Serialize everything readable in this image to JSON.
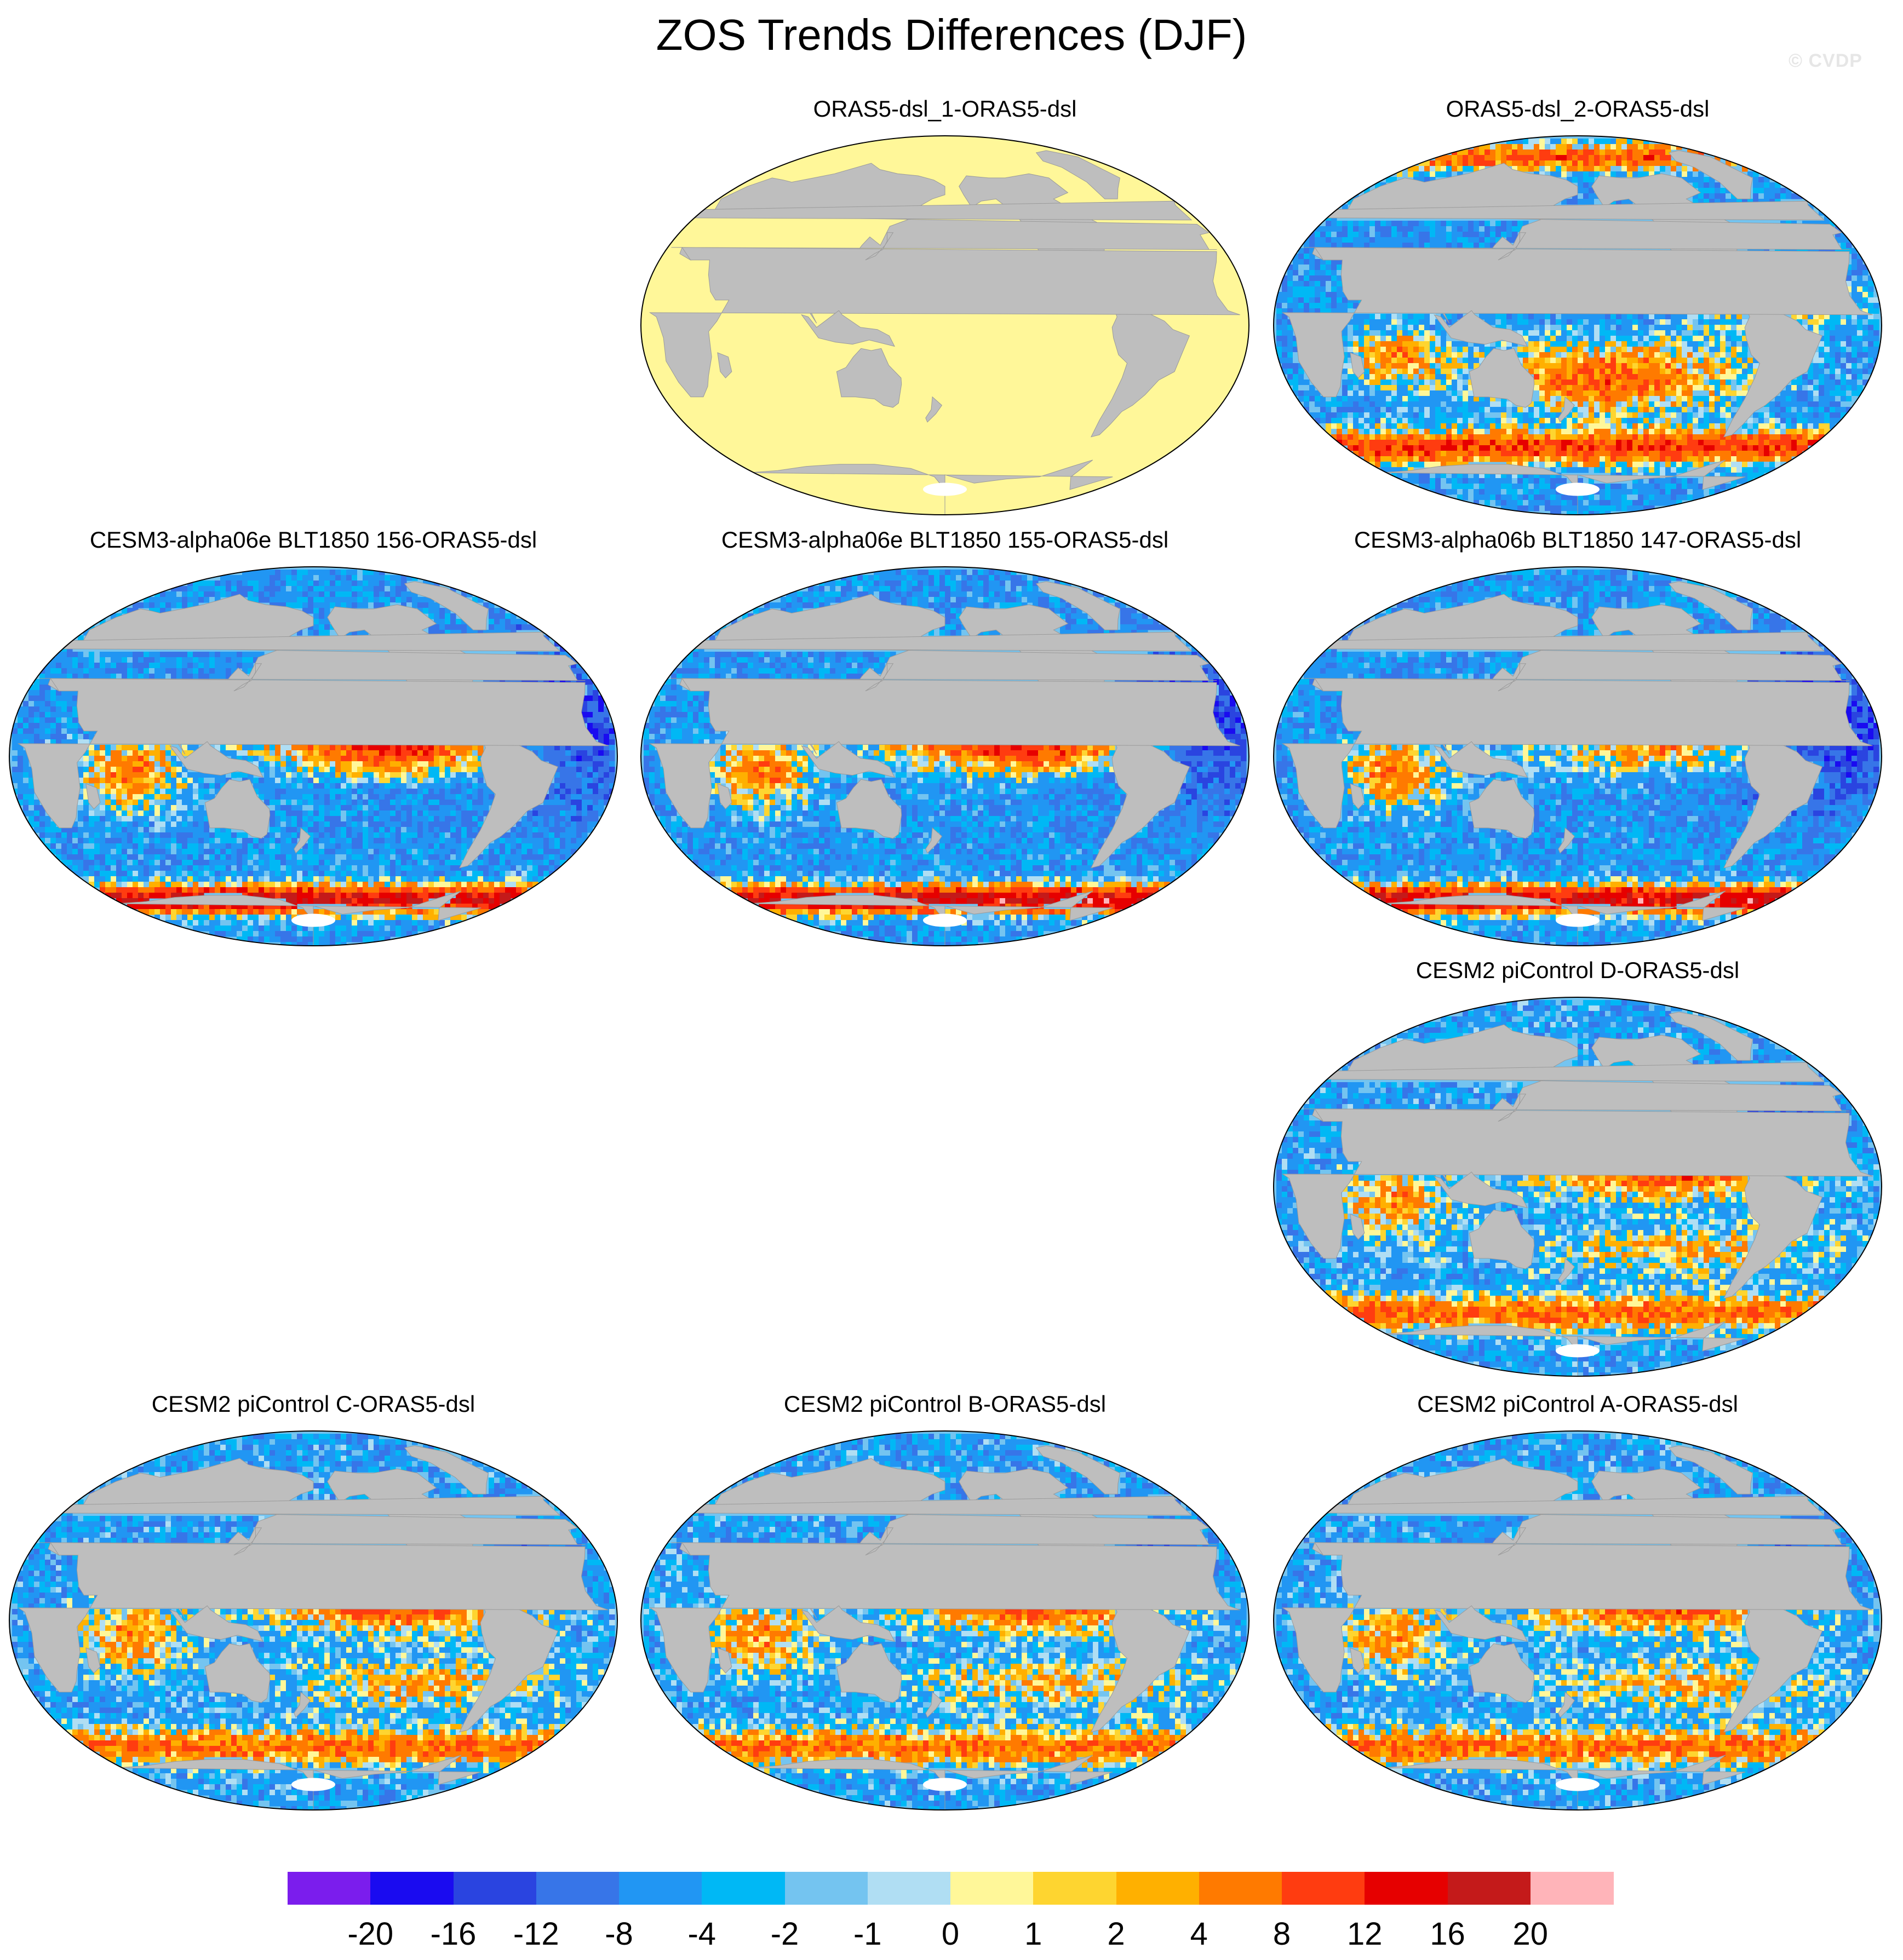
{
  "title": "ZOS Trends Differences (DJF)",
  "watermark": "© CVDP",
  "panels": [
    {
      "name": "ORAS5-dsl_1-ORAS5-dsl",
      "pattern": "uniform"
    },
    {
      "name": "ORAS5-dsl_2-ORAS5-dsl",
      "pattern": "oras2"
    },
    {
      "name": "CESM3-alpha06e BLT1850 156-ORAS5-dsl",
      "pattern": "alpha"
    },
    {
      "name": "CESM3-alpha06e BLT1850 155-ORAS5-dsl",
      "pattern": "alpha"
    },
    {
      "name": "CESM3-alpha06b BLT1850 147-ORAS5-dsl",
      "pattern": "alpha_b"
    },
    {
      "name": "CESM2 piControl D-ORAS5-dsl",
      "pattern": "picontrol"
    },
    {
      "name": "CESM2 piControl C-ORAS5-dsl",
      "pattern": "picontrol"
    },
    {
      "name": "CESM2 piControl B-ORAS5-dsl",
      "pattern": "picontrol"
    },
    {
      "name": "CESM2 piControl A-ORAS5-dsl",
      "pattern": "picontrol"
    }
  ],
  "colorbar": {
    "colors": [
      "#7b1ded",
      "#1a0bf0",
      "#2a44e0",
      "#3775e8",
      "#2196f3",
      "#00b8f5",
      "#74c4f0",
      "#b0def3",
      "#fff799",
      "#fed530",
      "#ffb000",
      "#ff7a00",
      "#ff3c10",
      "#e60000",
      "#c41a1a",
      "#ffb4b9"
    ],
    "labels": [
      "-20",
      "-16",
      "-12",
      "-8",
      "-4",
      "-2",
      "-1",
      "0",
      "1",
      "2",
      "4",
      "8",
      "12",
      "16",
      "20"
    ]
  },
  "colors": {
    "land": "#bebebe",
    "ice": "#ffffff",
    "uniform_ocean": "#fff799"
  }
}
